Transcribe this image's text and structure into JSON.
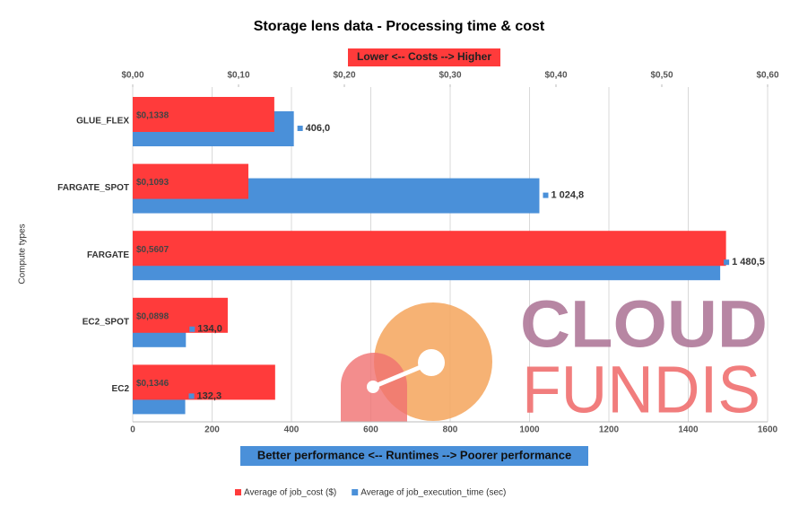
{
  "chart_data": {
    "type": "bar",
    "orientation": "horizontal",
    "title": "Storage lens data - Processing time & cost",
    "y_label": "Compute types",
    "x_label": "Better performance <-- Runtimes --> Poorer performance",
    "x2_label": "Lower <-- Costs --> Higher",
    "categories": [
      "GLUE_FLEX",
      "FARGATE_SPOT",
      "FARGATE",
      "EC2_SPOT",
      "EC2"
    ],
    "series": [
      {
        "name": "Average of job_cost ($)",
        "color": "#ff3b3b",
        "axis": "x2",
        "values": [
          0.1338,
          0.1093,
          0.5607,
          0.0898,
          0.1346
        ],
        "value_labels": [
          "$0,1338",
          "$0,1093",
          "$0,5607",
          "$0,0898",
          "$0,1346"
        ]
      },
      {
        "name": "Average of job_execution_time (sec)",
        "color": "#4a90d9",
        "values": [
          406.0,
          1024.8,
          1480.5,
          134.0,
          132.3
        ],
        "value_labels": [
          "406,0",
          "1 024,8",
          "1 480,5",
          "134,0",
          "132,3"
        ]
      }
    ],
    "xlim": [
      0,
      1600
    ],
    "xticks": [
      0,
      200,
      400,
      600,
      800,
      1000,
      1200,
      1400,
      1600
    ],
    "x2lim": [
      0,
      0.6
    ],
    "x2ticks": [
      {
        "value": 0,
        "label": "$0,00"
      },
      {
        "value": 0.1,
        "label": "$0,10"
      },
      {
        "value": 0.2,
        "label": "$0,20"
      },
      {
        "value": 0.3,
        "label": "$0,30"
      },
      {
        "value": 0.4,
        "label": "$0,40"
      },
      {
        "value": 0.5,
        "label": "$0,50"
      },
      {
        "value": 0.6,
        "label": "$0,60"
      }
    ],
    "grid": true,
    "legend": "bottom",
    "watermark": [
      "CLOUD",
      "FUNDIS"
    ]
  }
}
